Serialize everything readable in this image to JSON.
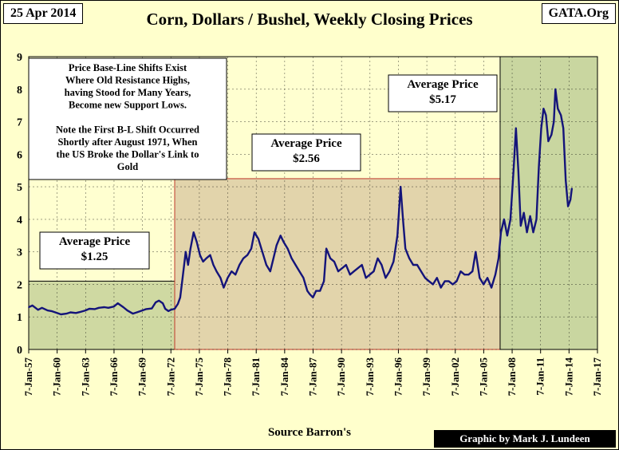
{
  "header": {
    "date": "25 Apr 2014",
    "brand": "GATA.Org",
    "title": "Corn, Dollars / Bushel, Weekly Closing Prices"
  },
  "footer": {
    "source": "Source Barron's",
    "credit": "Graphic by Mark J. Lundeen"
  },
  "colors": {
    "background": "#ffffcc",
    "plot_background": "#ffffd0",
    "line": "#14147a",
    "zone_1": "#cfd9a2",
    "zone_2": "#e2d4ab",
    "zone_3": "#c9d6a0",
    "zone_2_border": "#c0392b"
  },
  "chart_data": {
    "type": "line",
    "title": "Corn, Dollars / Bushel, Weekly Closing Prices",
    "xlabel": "",
    "ylabel": "",
    "ylim": [
      0,
      9
    ],
    "yticks": [
      0,
      1,
      2,
      3,
      4,
      5,
      6,
      7,
      8,
      9
    ],
    "xlim": [
      "1957-01-07",
      "2017-01-07"
    ],
    "xticks": [
      "7-Jan-57",
      "7-Jan-60",
      "7-Jan-63",
      "7-Jan-66",
      "7-Jan-69",
      "7-Jan-72",
      "7-Jan-75",
      "7-Jan-78",
      "7-Jan-81",
      "7-Jan-84",
      "7-Jan-87",
      "7-Jan-90",
      "7-Jan-93",
      "7-Jan-96",
      "7-Jan-99",
      "7-Jan-02",
      "7-Jan-05",
      "7-Jan-08",
      "7-Jan-11",
      "7-Jan-14",
      "7-Jan-17"
    ],
    "grid": true,
    "series": [
      {
        "x": [
          "1957-01-07",
          "1957-06-01",
          "1958-01-01",
          "1958-06-01",
          "1959-01-01",
          "1959-06-01",
          "1960-01-01",
          "1960-06-01",
          "1961-01-01",
          "1961-06-01",
          "1962-01-01",
          "1962-06-01",
          "1963-01-01",
          "1963-06-01",
          "1964-01-01",
          "1964-06-01",
          "1965-01-01",
          "1965-06-01",
          "1966-01-01",
          "1966-06-01",
          "1967-01-01",
          "1967-06-01",
          "1968-01-01",
          "1968-06-01",
          "1969-01-01",
          "1969-06-01",
          "1970-01-01",
          "1970-06-01",
          "1970-10-01",
          "1971-03-01",
          "1971-06-01",
          "1971-10-01",
          "1972-01-01",
          "1972-06-01",
          "1972-10-01",
          "1973-01-01",
          "1973-04-01",
          "1973-08-01",
          "1973-11-01",
          "1974-02-01",
          "1974-06-01",
          "1974-10-01",
          "1975-02-01",
          "1975-06-01",
          "1975-10-01",
          "1976-03-01",
          "1976-07-01",
          "1976-11-01",
          "1977-04-01",
          "1977-08-01",
          "1978-01-01",
          "1978-06-01",
          "1978-11-01",
          "1979-04-01",
          "1979-09-01",
          "1980-02-01",
          "1980-07-01",
          "1980-11-01",
          "1981-04-01",
          "1981-09-01",
          "1982-02-01",
          "1982-07-01",
          "1982-11-01",
          "1983-03-01",
          "1983-08-01",
          "1983-12-01",
          "1984-05-01",
          "1984-10-01",
          "1985-03-01",
          "1985-08-01",
          "1986-01-01",
          "1986-06-01",
          "1986-09-01",
          "1987-01-01",
          "1987-05-01",
          "1987-10-01",
          "1988-03-01",
          "1988-06-01",
          "1988-11-01",
          "1989-04-01",
          "1989-09-01",
          "1990-02-01",
          "1990-07-01",
          "1990-12-01",
          "1991-05-01",
          "1991-10-01",
          "1992-03-01",
          "1992-08-01",
          "1993-01-01",
          "1993-06-01",
          "1993-11-01",
          "1994-04-01",
          "1994-09-01",
          "1995-02-01",
          "1995-07-01",
          "1995-12-01",
          "1996-04-01",
          "1996-07-01",
          "1996-10-01",
          "1997-03-01",
          "1997-08-01",
          "1998-01-01",
          "1998-06-01",
          "1998-11-01",
          "1999-04-01",
          "1999-09-01",
          "2000-02-01",
          "2000-07-01",
          "2000-12-01",
          "2001-05-01",
          "2001-10-01",
          "2002-03-01",
          "2002-08-01",
          "2003-01-01",
          "2003-06-01",
          "2003-11-01",
          "2004-03-01",
          "2004-08-01",
          "2005-01-01",
          "2005-06-01",
          "2005-11-01",
          "2006-04-01",
          "2006-08-01",
          "2006-11-01",
          "2007-03-01",
          "2007-07-01",
          "2007-11-01",
          "2008-03-01",
          "2008-06-01",
          "2008-09-01",
          "2008-12-01",
          "2009-04-01",
          "2009-08-01",
          "2009-12-01",
          "2010-04-01",
          "2010-08-01",
          "2010-11-01",
          "2011-02-01",
          "2011-05-01",
          "2011-08-01",
          "2011-11-01",
          "2012-03-01",
          "2012-06-01",
          "2012-08-01",
          "2012-11-01",
          "2013-03-01",
          "2013-06-01",
          "2013-09-01",
          "2013-12-01",
          "2014-03-01",
          "2014-04-25"
        ],
        "values": [
          1.3,
          1.35,
          1.22,
          1.28,
          1.2,
          1.18,
          1.12,
          1.08,
          1.1,
          1.14,
          1.12,
          1.15,
          1.2,
          1.25,
          1.24,
          1.28,
          1.3,
          1.28,
          1.32,
          1.42,
          1.3,
          1.2,
          1.1,
          1.14,
          1.2,
          1.24,
          1.26,
          1.45,
          1.5,
          1.42,
          1.25,
          1.18,
          1.22,
          1.25,
          1.4,
          1.6,
          2.2,
          3.0,
          2.6,
          3.1,
          3.6,
          3.3,
          2.9,
          2.7,
          2.8,
          2.9,
          2.6,
          2.4,
          2.2,
          1.9,
          2.2,
          2.4,
          2.3,
          2.6,
          2.8,
          2.9,
          3.1,
          3.6,
          3.4,
          3.0,
          2.6,
          2.4,
          2.8,
          3.2,
          3.5,
          3.3,
          3.1,
          2.8,
          2.6,
          2.4,
          2.2,
          1.8,
          1.7,
          1.6,
          1.8,
          1.8,
          2.1,
          3.1,
          2.8,
          2.7,
          2.4,
          2.5,
          2.6,
          2.3,
          2.4,
          2.5,
          2.6,
          2.2,
          2.3,
          2.4,
          2.8,
          2.6,
          2.2,
          2.4,
          2.7,
          3.5,
          5.0,
          4.0,
          3.1,
          2.8,
          2.6,
          2.6,
          2.4,
          2.2,
          2.1,
          2.0,
          2.2,
          1.9,
          2.1,
          2.1,
          2.0,
          2.1,
          2.4,
          2.3,
          2.3,
          2.4,
          3.0,
          2.2,
          2.0,
          2.2,
          1.9,
          2.3,
          2.8,
          3.6,
          4.0,
          3.5,
          4.0,
          5.5,
          6.8,
          5.5,
          3.8,
          4.2,
          3.6,
          4.1,
          3.6,
          4.0,
          5.6,
          6.8,
          7.4,
          7.2,
          6.4,
          6.6,
          7.0,
          8.0,
          7.4,
          7.2,
          6.8,
          5.2,
          4.4,
          4.6,
          4.95
        ]
      }
    ],
    "shaded_regions": [
      {
        "x_start": "1957-01-07",
        "x_end": "1972-06-01",
        "level": 2.1
      },
      {
        "x_start": "1972-06-01",
        "x_end": "2006-10-01",
        "level": 5.25
      },
      {
        "x_start": "2006-10-01",
        "x_end": "2017-01-07",
        "level": 9.0
      }
    ],
    "annotations": [
      {
        "id": "avg1",
        "lines": [
          "Average Price",
          "$1.25"
        ]
      },
      {
        "id": "avg2",
        "lines": [
          "Average Price",
          "$2.56"
        ]
      },
      {
        "id": "avg3",
        "lines": [
          "Average Price",
          "$5.17"
        ]
      },
      {
        "id": "note",
        "lines": [
          "Price Base-Line Shifts Exist",
          "Where Old Resistance Highs,",
          "having Stood for Many Years,",
          "Become new Support Lows.",
          "",
          "Note the First B-L Shift Occurred",
          "Shortly after August 1971, When",
          "the US Broke the Dollar's Link to",
          "Gold"
        ]
      }
    ]
  }
}
